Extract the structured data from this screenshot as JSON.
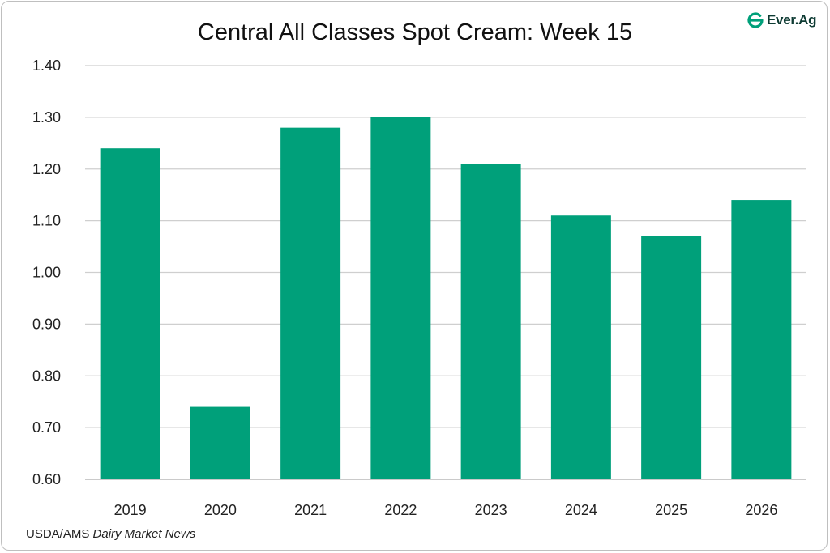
{
  "brand": {
    "name": "Ever.Ag",
    "icon": "everag-logo-icon",
    "color": "#00a07a"
  },
  "source": {
    "prefix": "USDA/AMS ",
    "italic": "Dairy Market News"
  },
  "chart_data": {
    "type": "bar",
    "title": "Central All Classes Spot Cream: Week 15",
    "xlabel": "",
    "ylabel": "",
    "categories": [
      "2019",
      "2020",
      "2021",
      "2022",
      "2023",
      "2024",
      "2025",
      "2026"
    ],
    "values": [
      1.24,
      0.74,
      1.28,
      1.3,
      1.21,
      1.11,
      1.07,
      1.14
    ],
    "ylim": [
      0.6,
      1.4
    ],
    "yticks": [
      "0.60",
      "0.70",
      "0.80",
      "0.90",
      "1.00",
      "1.10",
      "1.20",
      "1.30",
      "1.40"
    ],
    "grid": true,
    "legend": "none",
    "bar_color": "#00a07a"
  }
}
